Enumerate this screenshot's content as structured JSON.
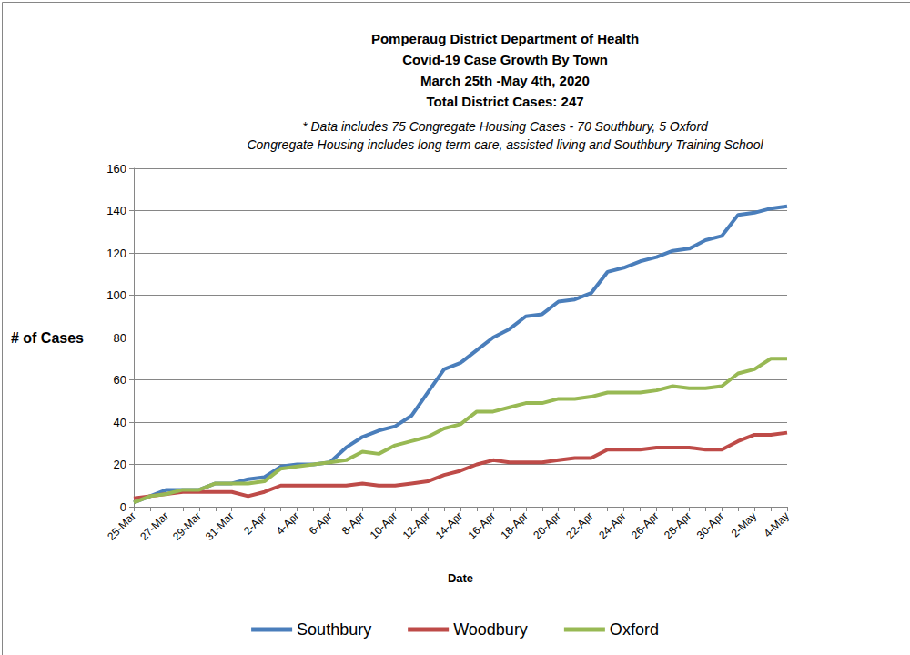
{
  "chart_data": {
    "type": "line",
    "title": "Pomperaug District Department of Health\nCovid-19 Case Growth By Town\nMarch 25th -May 4th, 2020\nTotal District Cases: 247",
    "subtitle": "* Data includes 75 Congregate Housing Cases - 70 Southbury, 5 Oxford\nCongregate Housing includes long term care, assisted living and Southbury Training School",
    "x_label": "Date",
    "y_label": "# of Cases",
    "categories": [
      "25-Mar",
      null,
      "27-Mar",
      null,
      "29-Mar",
      null,
      "31-Mar",
      null,
      "2-Apr",
      null,
      "4-Apr",
      null,
      "6-Apr",
      null,
      "8-Apr",
      null,
      "10-Apr",
      null,
      "12-Apr",
      null,
      "14-Apr",
      null,
      "16-Apr",
      null,
      "18-Apr",
      null,
      "20-Apr",
      null,
      "22-Apr",
      null,
      "24-Apr",
      null,
      "26-Apr",
      null,
      "28-Apr",
      null,
      "30-Apr",
      null,
      "2-May",
      null,
      "4-May"
    ],
    "series": [
      {
        "name": "Southbury",
        "color": "#4a7ebb",
        "values": [
          2,
          5,
          8,
          8,
          8,
          11,
          11,
          13,
          14,
          19,
          20,
          20,
          21,
          28,
          33,
          36,
          38,
          43,
          54,
          65,
          68,
          74,
          80,
          84,
          90,
          91,
          97,
          98,
          101,
          111,
          113,
          116,
          118,
          121,
          122,
          126,
          128,
          138,
          139,
          141,
          142
        ]
      },
      {
        "name": "Woodbury",
        "color": "#be4b48",
        "values": [
          4,
          5,
          6,
          7,
          7,
          7,
          7,
          5,
          7,
          10,
          10,
          10,
          10,
          10,
          11,
          10,
          10,
          11,
          12,
          15,
          17,
          20,
          22,
          21,
          21,
          21,
          22,
          23,
          23,
          27,
          27,
          27,
          28,
          28,
          28,
          27,
          27,
          31,
          34,
          34,
          35
        ]
      },
      {
        "name": "Oxford",
        "color": "#98b954",
        "values": [
          2,
          5,
          6,
          8,
          8,
          11,
          11,
          11,
          12,
          18,
          19,
          20,
          21,
          22,
          26,
          25,
          29,
          31,
          33,
          37,
          39,
          45,
          45,
          47,
          49,
          49,
          51,
          51,
          52,
          54,
          54,
          54,
          55,
          57,
          56,
          56,
          57,
          63,
          65,
          70,
          70
        ]
      }
    ],
    "ylim": [
      0,
      160
    ],
    "yticks": [
      0,
      20,
      40,
      60,
      80,
      100,
      120,
      140,
      160
    ],
    "grid": true,
    "legend": "bottom"
  }
}
